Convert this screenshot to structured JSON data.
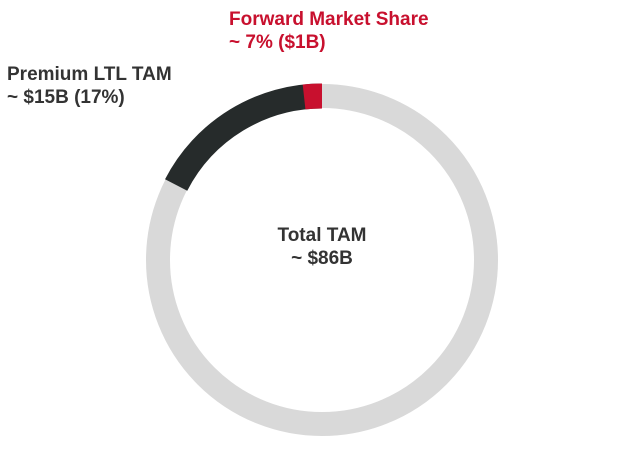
{
  "colors": {
    "total": "#d9d9d9",
    "premium": "#262b2b",
    "forward": "#c8102e",
    "text_dark": "#333333",
    "text_accent": "#c8102e"
  },
  "chart_data": {
    "type": "pie",
    "variant": "donut",
    "segments": [
      {
        "name": "Total TAM",
        "value_billion": 86,
        "color": "#d9d9d9"
      },
      {
        "name": "Premium LTL TAM",
        "value_billion": 15,
        "share_of_total_pct": 17,
        "color": "#262b2b"
      },
      {
        "name": "Forward Market Share",
        "value_billion": 1,
        "share_pct": 7,
        "color": "#c8102e"
      }
    ],
    "annotations": {
      "forward": {
        "line1": "Forward Market Share",
        "line2": "~ 7% ($1B)"
      },
      "premium": {
        "line1": "Premium LTL TAM",
        "line2": "~ $15B (17%)"
      },
      "total": {
        "line1": "Total TAM",
        "line2": "~ $86B"
      }
    }
  }
}
